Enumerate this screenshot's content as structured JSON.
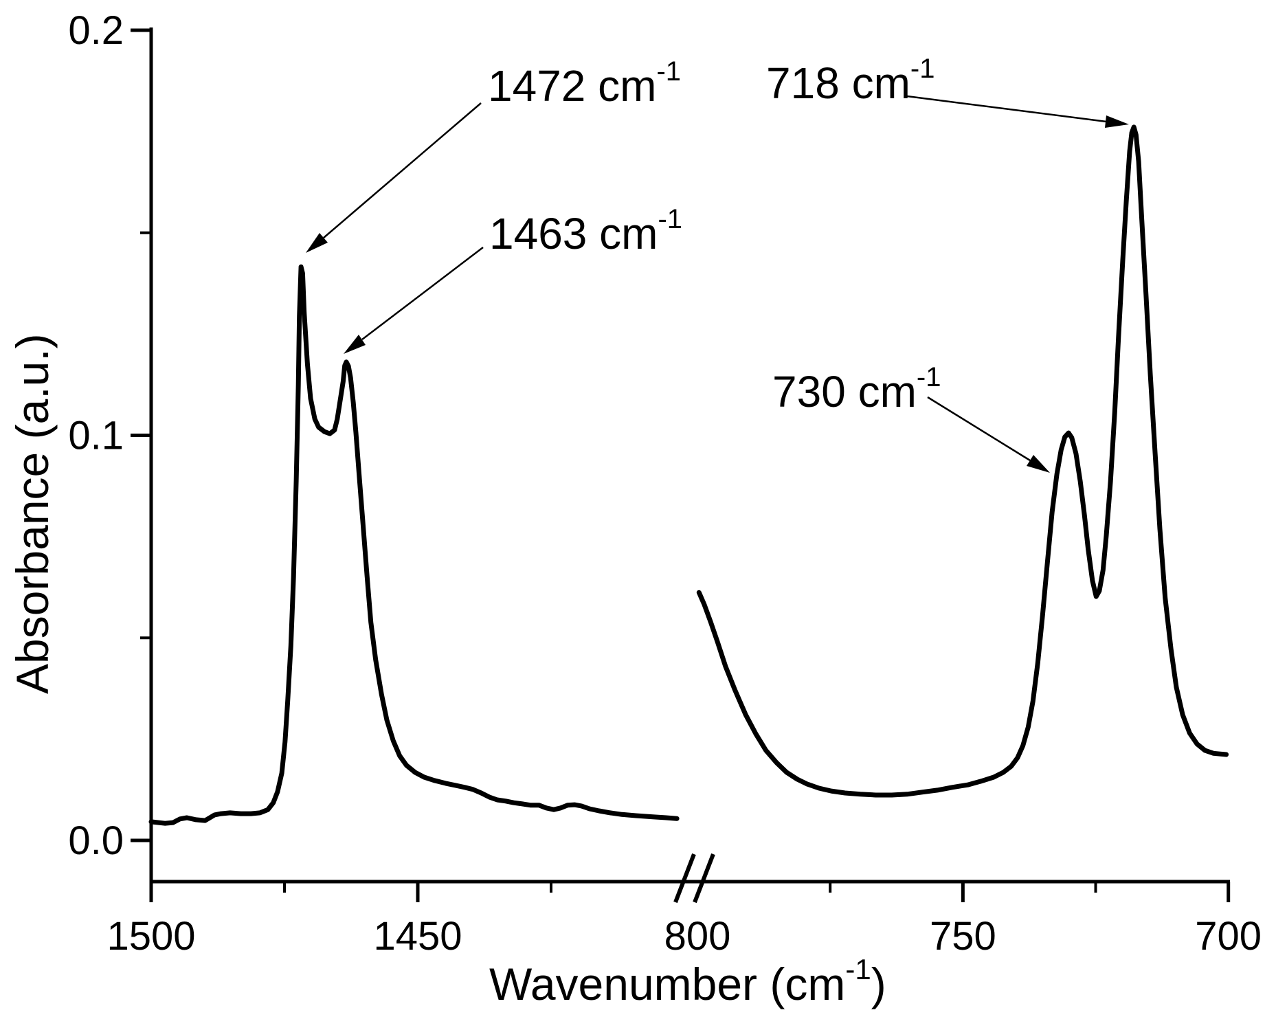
{
  "figure": {
    "background": "#ffffff",
    "line_color": "#000000"
  },
  "axes": {
    "x": {
      "title_pre": "Wavenumber (cm",
      "title_sup": "-1",
      "title_post": ")",
      "broken_axis": true,
      "major_ticks": [
        {
          "value": 1500,
          "label": "1500",
          "tick": true
        },
        {
          "value": 1450,
          "label": "1450",
          "tick": true
        },
        {
          "value": 800,
          "label": "800",
          "tick": false
        },
        {
          "value": 750,
          "label": "750",
          "tick": true
        },
        {
          "value": 700,
          "label": "700",
          "tick": true
        }
      ],
      "minor_ticks": [
        1475,
        1425,
        775,
        725
      ]
    },
    "y": {
      "title": "Absorbance (a.u.)",
      "major_ticks": [
        {
          "value": 0.0,
          "label": "0.0"
        },
        {
          "value": 0.1,
          "label": "0.1"
        },
        {
          "value": 0.2,
          "label": "0.2"
        }
      ],
      "minor_ticks": [
        0.05,
        0.15
      ],
      "range": [
        0.0,
        0.2
      ]
    }
  },
  "annotations": [
    {
      "id": "peak-1472",
      "text": "1472 cm",
      "sup": "-1"
    },
    {
      "id": "peak-1463",
      "text": "1463 cm",
      "sup": "-1"
    },
    {
      "id": "peak-718",
      "text": "718 cm",
      "sup": "-1"
    },
    {
      "id": "peak-730",
      "text": "730 cm",
      "sup": "-1"
    }
  ],
  "chart_data": {
    "type": "line",
    "title": "",
    "xlabel": "Wavenumber (cm-1)",
    "ylabel": "Absorbance (a.u.)",
    "ylim": [
      0.0,
      0.2
    ],
    "x_segments": [
      [
        1500,
        1402
      ],
      [
        800,
        700
      ]
    ],
    "grid": false,
    "legend": "none",
    "annotated_peaks": [
      {
        "wavenumber": 1472,
        "absorbance": 0.142
      },
      {
        "wavenumber": 1463,
        "absorbance": 0.118
      },
      {
        "wavenumber": 730,
        "absorbance": 0.101
      },
      {
        "wavenumber": 718,
        "absorbance": 0.176
      }
    ],
    "series": [
      {
        "name": "segment_1500_1400",
        "points": [
          [
            1500.0,
            0.0046
          ],
          [
            1497.4,
            0.0042
          ],
          [
            1495.9,
            0.0044
          ],
          [
            1494.6,
            0.0053
          ],
          [
            1493.3,
            0.0056
          ],
          [
            1491.6,
            0.0051
          ],
          [
            1489.9,
            0.0049
          ],
          [
            1489.0,
            0.0056
          ],
          [
            1488.1,
            0.0063
          ],
          [
            1486.9,
            0.0066
          ],
          [
            1485.2,
            0.0068
          ],
          [
            1483.2,
            0.0066
          ],
          [
            1481.3,
            0.0066
          ],
          [
            1479.6,
            0.0068
          ],
          [
            1478.1,
            0.0076
          ],
          [
            1477.1,
            0.0093
          ],
          [
            1476.3,
            0.012
          ],
          [
            1475.5,
            0.0166
          ],
          [
            1474.9,
            0.0243
          ],
          [
            1474.4,
            0.0344
          ],
          [
            1473.8,
            0.048
          ],
          [
            1473.3,
            0.065
          ],
          [
            1472.8,
            0.0887
          ],
          [
            1472.4,
            0.1125
          ],
          [
            1472.2,
            0.1294
          ],
          [
            1471.9,
            0.1416
          ],
          [
            1471.6,
            0.14
          ],
          [
            1471.3,
            0.1303
          ],
          [
            1470.7,
            0.1176
          ],
          [
            1470.1,
            0.1091
          ],
          [
            1469.3,
            0.104
          ],
          [
            1468.6,
            0.102
          ],
          [
            1467.5,
            0.1009
          ],
          [
            1466.5,
            0.1004
          ],
          [
            1465.6,
            0.1013
          ],
          [
            1465.1,
            0.104
          ],
          [
            1464.6,
            0.1082
          ],
          [
            1464.0,
            0.1133
          ],
          [
            1463.7,
            0.1172
          ],
          [
            1463.4,
            0.1181
          ],
          [
            1463.0,
            0.1171
          ],
          [
            1462.6,
            0.1142
          ],
          [
            1462.1,
            0.1082
          ],
          [
            1461.6,
            0.1006
          ],
          [
            1461.0,
            0.0904
          ],
          [
            1460.3,
            0.0785
          ],
          [
            1459.5,
            0.065
          ],
          [
            1458.8,
            0.0539
          ],
          [
            1457.9,
            0.0446
          ],
          [
            1456.8,
            0.0361
          ],
          [
            1455.8,
            0.0297
          ],
          [
            1454.6,
            0.0246
          ],
          [
            1453.4,
            0.0209
          ],
          [
            1452.1,
            0.0185
          ],
          [
            1450.5,
            0.0168
          ],
          [
            1448.8,
            0.0156
          ],
          [
            1446.9,
            0.0148
          ],
          [
            1444.8,
            0.0141
          ],
          [
            1443.0,
            0.0136
          ],
          [
            1441.2,
            0.0131
          ],
          [
            1439.7,
            0.0126
          ],
          [
            1438.1,
            0.0117
          ],
          [
            1436.6,
            0.0107
          ],
          [
            1435.1,
            0.01
          ],
          [
            1433.5,
            0.0097
          ],
          [
            1432.0,
            0.0093
          ],
          [
            1430.4,
            0.009
          ],
          [
            1428.9,
            0.0087
          ],
          [
            1427.3,
            0.0087
          ],
          [
            1425.9,
            0.008
          ],
          [
            1424.5,
            0.0076
          ],
          [
            1423.2,
            0.008
          ],
          [
            1421.9,
            0.0087
          ],
          [
            1420.6,
            0.0088
          ],
          [
            1419.3,
            0.0085
          ],
          [
            1417.8,
            0.0078
          ],
          [
            1416.0,
            0.0073
          ],
          [
            1413.9,
            0.0068
          ],
          [
            1411.7,
            0.0064
          ],
          [
            1409.1,
            0.0061
          ],
          [
            1405.9,
            0.0058
          ],
          [
            1403.4,
            0.0056
          ],
          [
            1401.4,
            0.0054
          ]
        ]
      },
      {
        "name": "segment_800_700",
        "points": [
          [
            799.7,
            0.0612
          ],
          [
            798.7,
            0.0582
          ],
          [
            797.5,
            0.0539
          ],
          [
            796.2,
            0.0489
          ],
          [
            794.7,
            0.0429
          ],
          [
            792.9,
            0.037
          ],
          [
            790.9,
            0.031
          ],
          [
            789.0,
            0.0263
          ],
          [
            787.1,
            0.0222
          ],
          [
            785.1,
            0.0192
          ],
          [
            783.2,
            0.0168
          ],
          [
            781.2,
            0.0151
          ],
          [
            779.3,
            0.0139
          ],
          [
            777.1,
            0.0129
          ],
          [
            774.8,
            0.0122
          ],
          [
            772.2,
            0.0117
          ],
          [
            769.3,
            0.0114
          ],
          [
            766.4,
            0.0112
          ],
          [
            763.4,
            0.0112
          ],
          [
            760.5,
            0.0114
          ],
          [
            757.7,
            0.0119
          ],
          [
            754.8,
            0.0124
          ],
          [
            752.0,
            0.0131
          ],
          [
            749.1,
            0.0137
          ],
          [
            746.6,
            0.0146
          ],
          [
            744.2,
            0.0156
          ],
          [
            742.4,
            0.0168
          ],
          [
            740.9,
            0.0183
          ],
          [
            739.7,
            0.0204
          ],
          [
            738.7,
            0.0234
          ],
          [
            737.7,
            0.028
          ],
          [
            736.8,
            0.0344
          ],
          [
            735.9,
            0.0438
          ],
          [
            735.0,
            0.0556
          ],
          [
            734.1,
            0.0684
          ],
          [
            733.2,
            0.0811
          ],
          [
            732.3,
            0.0904
          ],
          [
            731.5,
            0.0964
          ],
          [
            730.8,
            0.0996
          ],
          [
            730.1,
            0.1006
          ],
          [
            729.5,
            0.0994
          ],
          [
            728.7,
            0.0955
          ],
          [
            727.9,
            0.0887
          ],
          [
            727.1,
            0.0802
          ],
          [
            726.4,
            0.0718
          ],
          [
            725.6,
            0.0641
          ],
          [
            724.9,
            0.0602
          ],
          [
            724.3,
            0.0616
          ],
          [
            723.6,
            0.0667
          ],
          [
            723.0,
            0.0752
          ],
          [
            722.2,
            0.0887
          ],
          [
            721.4,
            0.1057
          ],
          [
            720.7,
            0.1243
          ],
          [
            719.9,
            0.143
          ],
          [
            719.2,
            0.1583
          ],
          [
            718.6,
            0.1701
          ],
          [
            718.2,
            0.1747
          ],
          [
            717.8,
            0.1761
          ],
          [
            717.4,
            0.1742
          ],
          [
            716.9,
            0.1676
          ],
          [
            716.3,
            0.1532
          ],
          [
            715.5,
            0.1345
          ],
          [
            714.7,
            0.115
          ],
          [
            713.8,
            0.0955
          ],
          [
            712.9,
            0.0769
          ],
          [
            711.9,
            0.0599
          ],
          [
            710.8,
            0.0472
          ],
          [
            709.8,
            0.0378
          ],
          [
            708.6,
            0.031
          ],
          [
            707.3,
            0.0265
          ],
          [
            705.9,
            0.0238
          ],
          [
            704.4,
            0.0222
          ],
          [
            702.8,
            0.0215
          ],
          [
            700.4,
            0.0212
          ]
        ]
      }
    ]
  }
}
